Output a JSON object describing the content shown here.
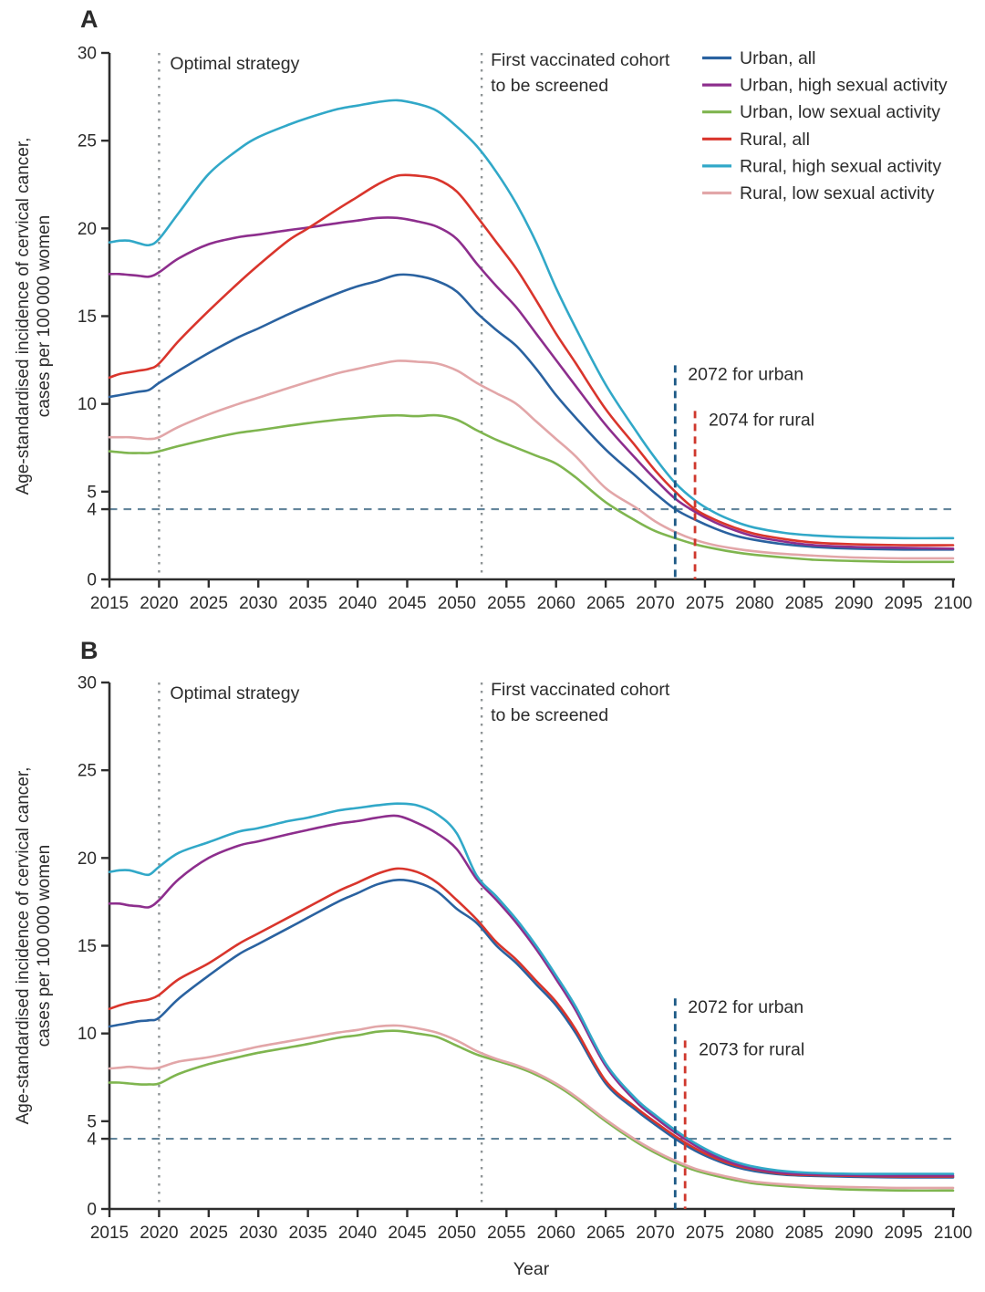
{
  "figure": {
    "y_axis_label_lines": [
      "Age-standardised incidence of cervical cancer,",
      "cases per 100 000 women"
    ],
    "x_axis_label": "Year"
  },
  "colors": {
    "axis": "#2e2e2e",
    "tick_text": "#2b2b2b",
    "gray_dash": "#8f9496",
    "threshold_dash": "#64869c",
    "urban_marker_line": "#1d5a86",
    "urban_marker_text": "#2d6a9d",
    "rural_marker_line": "#cf382d",
    "rural_marker_text": "#d0382d"
  },
  "legend": {
    "items": [
      {
        "label": "Urban, all",
        "color": "#2a62a0"
      },
      {
        "label": "Urban, high sexual activity",
        "color": "#8d2e8d"
      },
      {
        "label": "Urban, low sexual activity",
        "color": "#7fb54f"
      },
      {
        "label": "Rural, all",
        "color": "#d9352c"
      },
      {
        "label": "Rural, high sexual activity",
        "color": "#31a8c8"
      },
      {
        "label": "Rural, low sexual activity",
        "color": "#e2a6a8"
      }
    ]
  },
  "chart_data": [
    {
      "type": "line",
      "panel_label": "A",
      "xlim": [
        2015,
        2100
      ],
      "ylim": [
        0,
        30
      ],
      "xticks": [
        2015,
        2020,
        2025,
        2030,
        2035,
        2040,
        2045,
        2050,
        2055,
        2060,
        2065,
        2070,
        2075,
        2080,
        2085,
        2090,
        2095,
        2100
      ],
      "yticks": [
        0,
        4,
        5,
        10,
        15,
        20,
        25,
        30
      ],
      "x": [
        2015,
        2016,
        2017,
        2018,
        2019,
        2020,
        2022,
        2025,
        2028,
        2030,
        2033,
        2035,
        2038,
        2040,
        2042,
        2044,
        2046,
        2048,
        2050,
        2052,
        2054,
        2056,
        2058,
        2060,
        2062,
        2065,
        2068,
        2070,
        2072,
        2074,
        2076,
        2078,
        2080,
        2083,
        2086,
        2090,
        2095,
        2100
      ],
      "series": [
        {
          "name": "Rural, low sexual activity",
          "color": "#e2a6a8",
          "values": [
            8.1,
            8.1,
            8.1,
            8.05,
            8.0,
            8.1,
            8.7,
            9.4,
            10.0,
            10.35,
            10.9,
            11.25,
            11.75,
            12.0,
            12.25,
            12.45,
            12.4,
            12.3,
            11.9,
            11.2,
            10.6,
            10.0,
            9.0,
            8.0,
            7.0,
            5.2,
            4.1,
            3.3,
            2.7,
            2.25,
            1.95,
            1.75,
            1.6,
            1.45,
            1.35,
            1.25,
            1.2,
            1.2
          ]
        },
        {
          "name": "Urban, low sexual activity",
          "color": "#7fb54f",
          "values": [
            7.3,
            7.25,
            7.2,
            7.2,
            7.2,
            7.3,
            7.6,
            8.0,
            8.35,
            8.5,
            8.75,
            8.9,
            9.1,
            9.2,
            9.3,
            9.35,
            9.3,
            9.35,
            9.1,
            8.5,
            7.95,
            7.5,
            7.05,
            6.6,
            5.8,
            4.4,
            3.35,
            2.75,
            2.35,
            2.0,
            1.75,
            1.55,
            1.4,
            1.25,
            1.12,
            1.05,
            1.0,
            1.0
          ]
        },
        {
          "name": "Urban, all",
          "color": "#2a62a0",
          "values": [
            10.4,
            10.5,
            10.6,
            10.7,
            10.8,
            11.2,
            11.9,
            12.9,
            13.8,
            14.3,
            15.1,
            15.6,
            16.3,
            16.7,
            17.0,
            17.35,
            17.3,
            17.0,
            16.4,
            15.2,
            14.2,
            13.3,
            12.0,
            10.5,
            9.2,
            7.4,
            5.9,
            4.9,
            4.0,
            3.4,
            2.9,
            2.5,
            2.25,
            2.0,
            1.85,
            1.75,
            1.7,
            1.7
          ]
        },
        {
          "name": "Urban, high sexual activity",
          "color": "#8d2e8d",
          "values": [
            17.4,
            17.4,
            17.35,
            17.3,
            17.25,
            17.5,
            18.3,
            19.1,
            19.5,
            19.65,
            19.9,
            20.05,
            20.3,
            20.45,
            20.6,
            20.6,
            20.4,
            20.1,
            19.4,
            18.0,
            16.7,
            15.5,
            14.0,
            12.5,
            11.0,
            8.8,
            6.9,
            5.7,
            4.6,
            3.85,
            3.25,
            2.8,
            2.45,
            2.15,
            1.95,
            1.85,
            1.8,
            1.75
          ]
        },
        {
          "name": "Rural, all",
          "color": "#d9352c",
          "values": [
            11.5,
            11.7,
            11.8,
            11.9,
            12.0,
            12.3,
            13.6,
            15.3,
            16.9,
            17.9,
            19.3,
            20.0,
            21.1,
            21.8,
            22.5,
            23.0,
            23.0,
            22.8,
            22.1,
            20.7,
            19.2,
            17.7,
            15.9,
            14.0,
            12.3,
            9.7,
            7.6,
            6.2,
            5.0,
            4.0,
            3.4,
            2.95,
            2.6,
            2.3,
            2.1,
            2.0,
            1.95,
            1.95
          ]
        },
        {
          "name": "Rural, high sexual activity",
          "color": "#31a8c8",
          "values": [
            19.2,
            19.3,
            19.3,
            19.15,
            19.05,
            19.4,
            20.9,
            23.1,
            24.5,
            25.2,
            25.9,
            26.3,
            26.8,
            27.0,
            27.2,
            27.3,
            27.1,
            26.7,
            25.8,
            24.7,
            23.2,
            21.4,
            19.2,
            16.6,
            14.3,
            11.1,
            8.5,
            6.9,
            5.5,
            4.5,
            3.8,
            3.3,
            2.95,
            2.65,
            2.5,
            2.4,
            2.35,
            2.35
          ]
        }
      ],
      "annotations": {
        "strategy": {
          "x": 2020,
          "label": "Optimal strategy"
        },
        "cohort": {
          "x": 2052.5,
          "label_lines": [
            "First vaccinated cohort",
            "to be screened"
          ]
        },
        "threshold_y": 4,
        "urban_marker": {
          "x": 2072,
          "label": "2072 for urban",
          "line_top_value": 12.2
        },
        "rural_marker": {
          "x": 2074,
          "label": "2074 for rural",
          "line_top_value": 9.6
        }
      }
    },
    {
      "type": "line",
      "panel_label": "B",
      "xlim": [
        2015,
        2100
      ],
      "ylim": [
        0,
        30
      ],
      "xticks": [
        2015,
        2020,
        2025,
        2030,
        2035,
        2040,
        2045,
        2050,
        2055,
        2060,
        2065,
        2070,
        2075,
        2080,
        2085,
        2090,
        2095,
        2100
      ],
      "yticks": [
        0,
        4,
        5,
        10,
        15,
        20,
        25,
        30
      ],
      "x": [
        2015,
        2016,
        2017,
        2018,
        2019,
        2020,
        2022,
        2025,
        2028,
        2030,
        2033,
        2035,
        2038,
        2040,
        2042,
        2044,
        2046,
        2048,
        2050,
        2052,
        2054,
        2056,
        2058,
        2060,
        2062,
        2065,
        2068,
        2070,
        2072,
        2074,
        2076,
        2078,
        2080,
        2083,
        2086,
        2090,
        2095,
        2100
      ],
      "series": [
        {
          "name": "Urban, low sexual activity",
          "color": "#7fb54f",
          "values": [
            7.2,
            7.2,
            7.15,
            7.1,
            7.1,
            7.15,
            7.7,
            8.25,
            8.65,
            8.9,
            9.2,
            9.4,
            9.75,
            9.9,
            10.1,
            10.15,
            10.0,
            9.8,
            9.3,
            8.8,
            8.45,
            8.1,
            7.65,
            7.05,
            6.3,
            5.0,
            3.85,
            3.2,
            2.65,
            2.2,
            1.9,
            1.65,
            1.45,
            1.3,
            1.2,
            1.1,
            1.05,
            1.05
          ]
        },
        {
          "name": "Rural, low sexual activity",
          "color": "#e2a6a8",
          "values": [
            8.0,
            8.05,
            8.1,
            8.05,
            8.0,
            8.05,
            8.4,
            8.65,
            9.0,
            9.25,
            9.55,
            9.75,
            10.05,
            10.2,
            10.4,
            10.45,
            10.3,
            10.05,
            9.6,
            9.0,
            8.55,
            8.2,
            7.75,
            7.15,
            6.4,
            5.1,
            3.95,
            3.3,
            2.75,
            2.3,
            2.0,
            1.75,
            1.55,
            1.4,
            1.3,
            1.25,
            1.2,
            1.2
          ]
        },
        {
          "name": "Urban, all",
          "color": "#2a62a0",
          "values": [
            10.4,
            10.5,
            10.6,
            10.7,
            10.75,
            10.9,
            12.0,
            13.3,
            14.5,
            15.1,
            16.0,
            16.6,
            17.5,
            18.0,
            18.5,
            18.75,
            18.6,
            18.1,
            17.1,
            16.3,
            15.0,
            14.0,
            12.8,
            11.6,
            10.0,
            7.15,
            5.65,
            4.8,
            4.0,
            3.32,
            2.8,
            2.4,
            2.15,
            1.95,
            1.88,
            1.83,
            1.8,
            1.8
          ]
        },
        {
          "name": "Rural, all",
          "color": "#d9352c",
          "values": [
            11.4,
            11.6,
            11.75,
            11.85,
            11.95,
            12.2,
            13.1,
            14.0,
            15.1,
            15.7,
            16.6,
            17.2,
            18.1,
            18.6,
            19.1,
            19.4,
            19.2,
            18.6,
            17.6,
            16.5,
            15.2,
            14.2,
            13.0,
            11.8,
            10.2,
            7.3,
            5.8,
            4.95,
            4.15,
            3.45,
            2.9,
            2.5,
            2.25,
            2.0,
            1.93,
            1.88,
            1.85,
            1.85
          ]
        },
        {
          "name": "Urban, high sexual activity",
          "color": "#8d2e8d",
          "values": [
            17.4,
            17.4,
            17.3,
            17.25,
            17.2,
            17.6,
            18.8,
            20.0,
            20.7,
            20.95,
            21.35,
            21.6,
            21.95,
            22.1,
            22.3,
            22.4,
            22.0,
            21.4,
            20.5,
            18.8,
            17.6,
            16.3,
            14.8,
            13.1,
            11.3,
            8.15,
            6.15,
            5.2,
            4.35,
            3.62,
            3.02,
            2.58,
            2.3,
            2.05,
            1.97,
            1.92,
            1.9,
            1.9
          ]
        },
        {
          "name": "Rural, high sexual activity",
          "color": "#31a8c8",
          "values": [
            19.2,
            19.3,
            19.3,
            19.15,
            19.05,
            19.5,
            20.3,
            20.9,
            21.5,
            21.7,
            22.1,
            22.3,
            22.7,
            22.85,
            23.0,
            23.1,
            23.0,
            22.5,
            21.4,
            19.0,
            17.8,
            16.5,
            15.0,
            13.3,
            11.5,
            8.3,
            6.3,
            5.35,
            4.5,
            3.75,
            3.15,
            2.7,
            2.4,
            2.15,
            2.05,
            2.0,
            2.0,
            2.0
          ]
        }
      ],
      "annotations": {
        "strategy": {
          "x": 2020,
          "label": "Optimal strategy"
        },
        "cohort": {
          "x": 2052.5,
          "label_lines": [
            "First vaccinated cohort",
            "to be screened"
          ]
        },
        "threshold_y": 4,
        "urban_marker": {
          "x": 2072,
          "label": "2072 for urban",
          "line_top_value": 12.0
        },
        "rural_marker": {
          "x": 2073,
          "label": "2073 for rural",
          "line_top_value": 9.6
        }
      }
    }
  ]
}
